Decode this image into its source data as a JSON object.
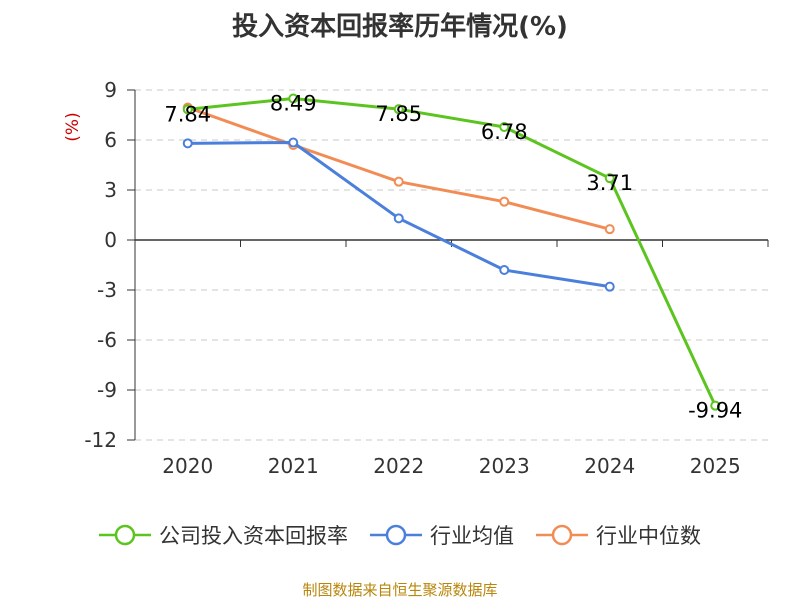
{
  "title": "投入资本回报率历年情况(%)",
  "source": "制图数据来自恒生聚源数据库",
  "chart_data": {
    "type": "line",
    "title": "投入资本回报率历年情况(%)",
    "ylabel": "(%)",
    "xlabel": "",
    "categories": [
      "2020",
      "2021",
      "2022",
      "2023",
      "2024",
      "2025"
    ],
    "ylim": [
      -12,
      9
    ],
    "yticks": [
      9,
      6,
      3,
      0,
      -3,
      -6,
      -9,
      -12
    ],
    "grid": true,
    "legend_position": "bottom",
    "series": [
      {
        "name": "公司投入资本回报率",
        "color": "#5cc41f",
        "values": [
          7.84,
          8.49,
          7.85,
          6.78,
          3.71,
          -9.94
        ],
        "labels": [
          "7.84",
          "8.49",
          "7.85",
          "6.78",
          "3.71",
          "-9.94"
        ]
      },
      {
        "name": "行业均值",
        "color": "#4b7fdc",
        "values": [
          5.8,
          5.85,
          1.3,
          -1.8,
          -2.8,
          null
        ]
      },
      {
        "name": "行业中位数",
        "color": "#f28c55",
        "values": [
          7.95,
          5.7,
          3.5,
          2.3,
          0.65,
          null
        ]
      }
    ]
  }
}
